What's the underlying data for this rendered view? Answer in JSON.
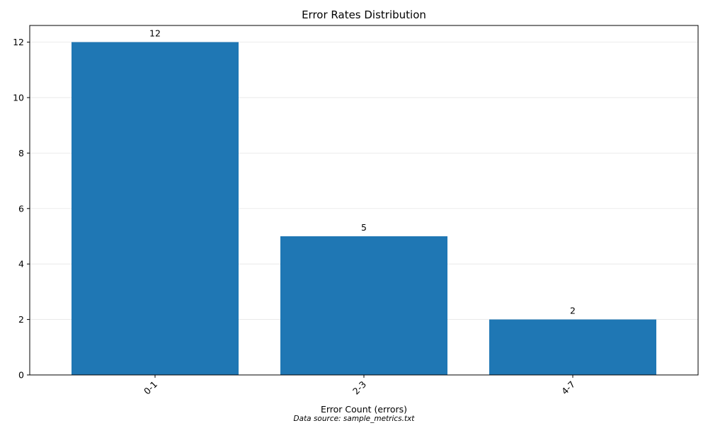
{
  "chart_data": {
    "type": "bar",
    "title": "Error Rates Distribution",
    "xlabel": "Error Count (errors)",
    "ylabel": "",
    "categories": [
      "0-1",
      "2-3",
      "4-7"
    ],
    "values": [
      12,
      5,
      2
    ],
    "data_labels": [
      "12",
      "5",
      "2"
    ],
    "ylim": [
      0,
      12.6
    ],
    "yticks": [
      0,
      2,
      4,
      6,
      8,
      10,
      12
    ],
    "grid": "horizontal",
    "bar_color": "#1f77b4",
    "footnote": "Data source: sample_metrics.txt"
  }
}
